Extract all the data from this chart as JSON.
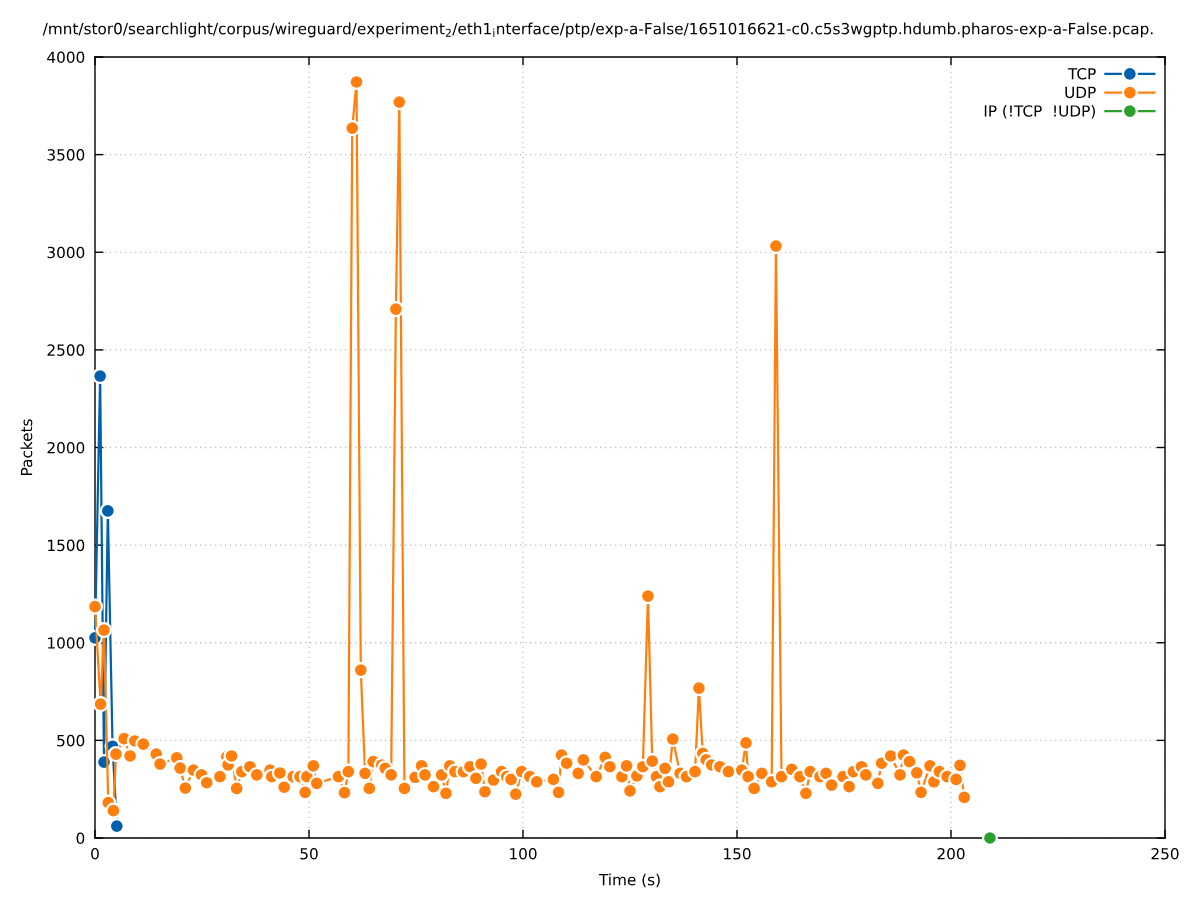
{
  "chart_data": {
    "type": "line",
    "title": "/mnt/stor0/searchlight/corpus/wireguard/experiment$_{2}$/eth1$_{i}$nterface/ptp/exp-a-False/1651016621-c0.c5s3wgptp.hdumb.pharos-exp-a-False.pcap.",
    "xlabel": "Time (s)",
    "ylabel": "Packets",
    "xlim": [
      0,
      250
    ],
    "xticks": [
      0,
      50,
      100,
      150,
      200,
      250
    ],
    "ylim": [
      0,
      4000
    ],
    "yticks": [
      0,
      500,
      1000,
      1500,
      2000,
      2500,
      3000,
      3500,
      4000
    ],
    "grid": true,
    "legend": "top right",
    "marker": "circle",
    "line_style": "solid",
    "series": [
      {
        "name": "TCP",
        "color": "#0060ad",
        "x": [
          0,
          1.2,
          2.1,
          3.0,
          4.1,
          5.1
        ],
        "values": [
          1025,
          2366,
          389,
          1675,
          470,
          61
        ]
      },
      {
        "name": "UDP",
        "color": "#ff7f0e",
        "x": [
          0,
          1.3,
          2.1,
          3.1,
          4.3,
          4.9,
          6.8,
          8.2,
          9.3,
          11.3,
          14.3,
          15.2,
          19.1,
          19.9,
          21.1,
          23.0,
          24.9,
          26.1,
          29.2,
          30.8,
          31.1,
          31.9,
          33.1,
          34.3,
          36.2,
          37.8,
          40.9,
          41.3,
          43.2,
          44.2,
          46.3,
          47.9,
          49.1,
          49.5,
          51.0,
          51.8,
          56.9,
          58.3,
          59.2,
          60.1,
          61.1,
          62.1,
          63.1,
          64.1,
          65.0,
          67.0,
          67.8,
          69.2,
          70.3,
          71.1,
          72.3,
          74.8,
          76.3,
          77.1,
          79.1,
          81.0,
          82.0,
          82.9,
          84.1,
          86.1,
          87.6,
          89.0,
          90.2,
          91.1,
          93.1,
          95.0,
          96.2,
          97.2,
          98.3,
          99.7,
          101.6,
          103.2,
          107.1,
          108.3,
          109.0,
          110.2,
          112.9,
          114.1,
          117.1,
          119.2,
          120.3,
          123.1,
          124.2,
          125.0,
          126.6,
          128.0,
          129.2,
          130.2,
          131.2,
          132.0,
          133.2,
          134.0,
          135.0,
          136.7,
          138.2,
          140.2,
          141.1,
          142.0,
          142.8,
          144.1,
          146.0,
          148.0,
          151.1,
          152.1,
          152.6,
          154.0,
          155.8,
          158.1,
          159.1,
          160.4,
          162.8,
          164.7,
          166.1,
          167.1,
          169.4,
          170.8,
          172.1,
          174.8,
          176.2,
          177.2,
          179.1,
          180.1,
          182.9,
          183.8,
          185.9,
          188.1,
          188.9,
          190.3,
          192.0,
          193.0,
          195.1,
          196.0,
          197.3,
          199.1,
          201.2,
          202.1,
          203.1
        ],
        "values": [
          1185,
          686,
          1065,
          181,
          140,
          430,
          509,
          420,
          497,
          481,
          430,
          379,
          410,
          358,
          256,
          348,
          323,
          283,
          314,
          416,
          374,
          420,
          254,
          340,
          365,
          323,
          348,
          314,
          333,
          260,
          314,
          314,
          234,
          314,
          369,
          280,
          314,
          232,
          340,
          3636,
          3872,
          860,
          331,
          254,
          391,
          374,
          357,
          323,
          2709,
          3769,
          254,
          311,
          369,
          323,
          263,
          323,
          229,
          369,
          340,
          340,
          365,
          306,
          379,
          237,
          297,
          340,
          314,
          300,
          225,
          340,
          314,
          288,
          300,
          234,
          425,
          383,
          331,
          400,
          314,
          413,
          365,
          314,
          369,
          241,
          318,
          365,
          1239,
          394,
          314,
          263,
          357,
          288,
          507,
          331,
          314,
          340,
          768,
          434,
          400,
          374,
          365,
          340,
          348,
          487,
          314,
          254,
          331,
          288,
          3032,
          314,
          352,
          314,
          229,
          340,
          314,
          331,
          271,
          314,
          263,
          340,
          365,
          323,
          280,
          383,
          420,
          323,
          425,
          391,
          334,
          234,
          369,
          288,
          340,
          314,
          300,
          372,
          208
        ]
      },
      {
        "name": "IP (!TCP  !UDP)",
        "color": "#2ca02c",
        "x": [
          209.1
        ],
        "values": [
          0
        ]
      }
    ]
  }
}
